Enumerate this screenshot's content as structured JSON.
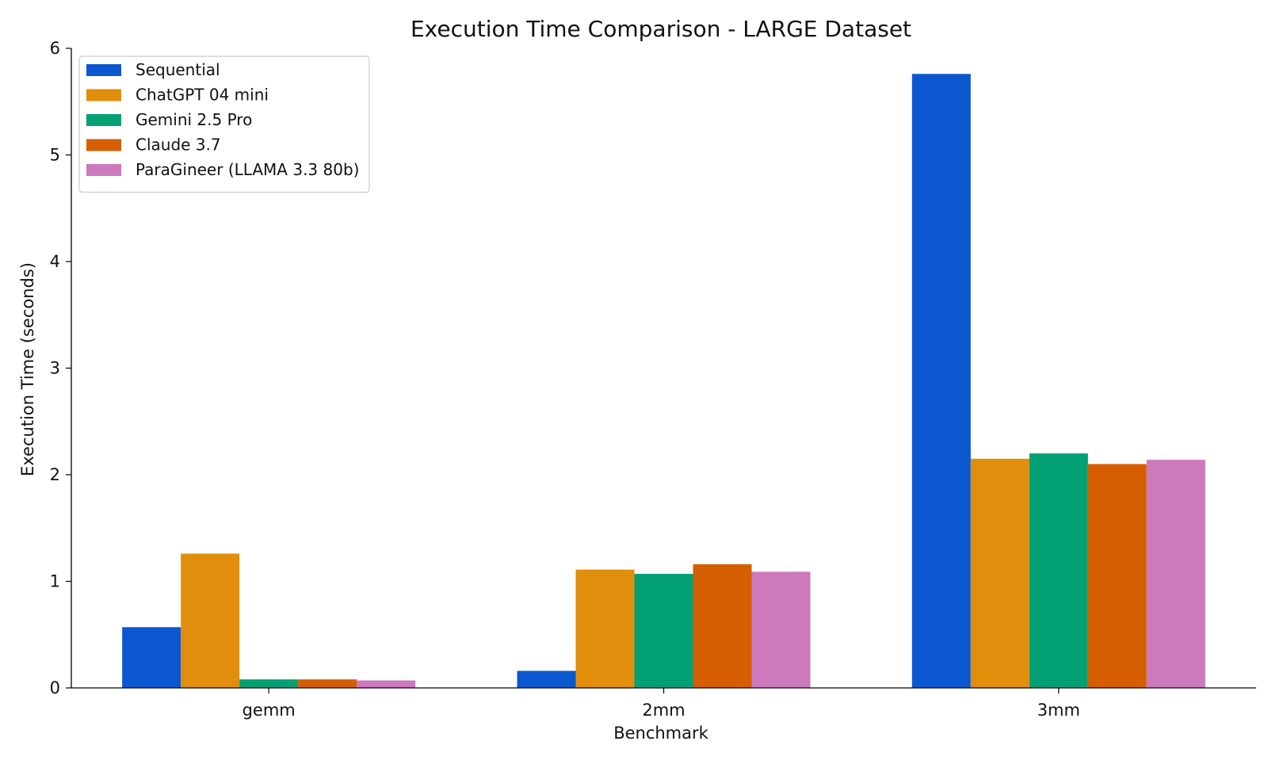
{
  "chart_data": {
    "type": "bar",
    "title": "Execution Time Comparison - LARGE Dataset",
    "xlabel": "Benchmark",
    "ylabel": "Execution Time (seconds)",
    "categories": [
      "gemm",
      "2mm",
      "3mm"
    ],
    "ylim": [
      0,
      6
    ],
    "yticks": [
      0,
      1,
      2,
      3,
      4,
      5,
      6
    ],
    "grid": false,
    "legend_position": "top-left",
    "series": [
      {
        "name": "Sequential",
        "color": "#0b57d0",
        "values": [
          0.57,
          0.16,
          5.76
        ]
      },
      {
        "name": "ChatGPT 04 mini",
        "color": "#e08e0b",
        "values": [
          1.26,
          1.11,
          2.15
        ]
      },
      {
        "name": "Gemini 2.5 Pro",
        "color": "#02a074",
        "values": [
          0.08,
          1.07,
          2.2
        ]
      },
      {
        "name": "Claude 3.7",
        "color": "#d55e00",
        "values": [
          0.08,
          1.16,
          2.1
        ]
      },
      {
        "name": "ParaGineer (LLAMA 3.3 80b)",
        "color": "#cc79bd",
        "values": [
          0.07,
          1.09,
          2.14
        ]
      }
    ]
  }
}
